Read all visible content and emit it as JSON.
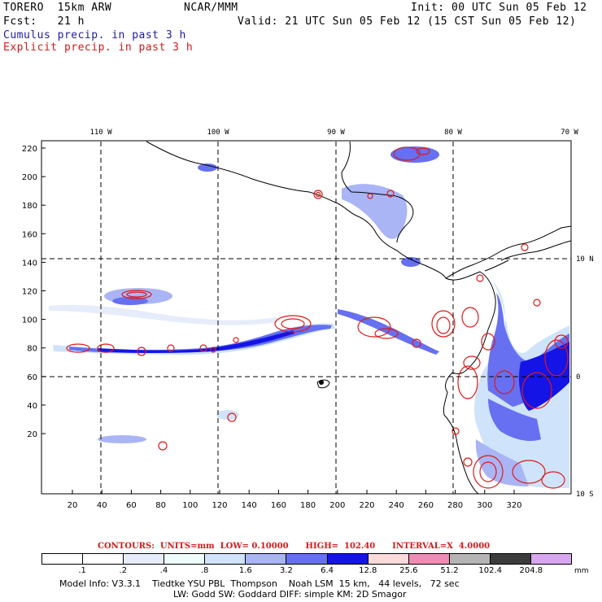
{
  "header": {
    "model": "TORERO  15km ARW",
    "center": "NCAR/MMM",
    "init": "Init: 00 UTC Sun 05 Feb 12",
    "fcst": "Fcst:   21 h",
    "valid": "Valid: 21 UTC Sun 05 Feb 12 (15 CST Sun 05 Feb 12)",
    "cumulus": "Cumulus precip. in past 3 h",
    "explicit": "Explicit precip. in past 3 h"
  },
  "axes": {
    "top_lon_labels": [
      "110 W",
      "100 W",
      "90 W",
      "80 W",
      "70 W"
    ],
    "right_lat_labels": [
      "10 N",
      "0",
      "10 S"
    ],
    "left_y_ticks": [
      "220",
      "200",
      "180",
      "160",
      "140",
      "120",
      "100",
      "80",
      "60",
      "40",
      "20"
    ],
    "bottom_x_ticks": [
      "20",
      "40",
      "60",
      "80",
      "100",
      "120",
      "140",
      "160",
      "180",
      "200",
      "220",
      "240",
      "260",
      "280",
      "300",
      "320"
    ]
  },
  "contours": {
    "text": "CONTOURS:  UNITS=mm  LOW= 0.10000      HIGH=  102.40      INTERVAL=X  4.0000"
  },
  "legend": {
    "labels": [
      ".1",
      ".2",
      ".4",
      ".8",
      "1.6",
      "3.2",
      "6.4",
      "12.8",
      "25.6",
      "51.2",
      "102.4",
      "204.8"
    ],
    "unit": "mm",
    "colors": [
      "#ffffff",
      "#ffffff",
      "#e6ecfa",
      "#eefcfc",
      "#cfe3fa",
      "#a9b5f5",
      "#6670f0",
      "#1414e6",
      "#fadada",
      "#f08cb4",
      "#b4b4b4",
      "#3c3c3c",
      "#d9a6f0"
    ]
  },
  "footer": {
    "line1": "Model Info: V3.3.1    Tiedtke YSU PBL  Thompson    Noah LSM  15 km,   44 levels,   72 sec",
    "line2": "LW: Godd SW: Goddard DIFF: simple KM: 2D Smagor"
  }
}
